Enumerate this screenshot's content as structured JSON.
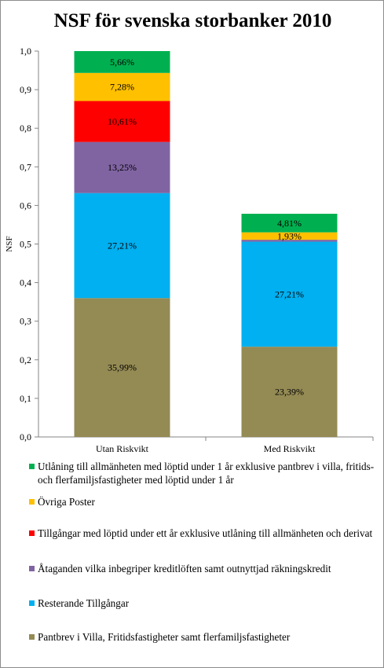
{
  "chart_data": {
    "type": "bar",
    "stacked": true,
    "title": "NSF för svenska storbanker 2010",
    "xlabel": "",
    "ylabel": "NSF",
    "ylim": [
      0,
      1
    ],
    "yticks": [
      "0,0",
      "0,1",
      "0,2",
      "0,3",
      "0,4",
      "0,5",
      "0,6",
      "0,7",
      "0,8",
      "0,9",
      "1,0"
    ],
    "categories": [
      "Utan Riskvikt",
      "Med Riskvikt"
    ],
    "grid": false,
    "legend_position": "bottom",
    "series": [
      {
        "name": "Pantbrev i Villa, Fritidsfastigheter samt flerfamiljsfastigheter",
        "color": "#948a54",
        "values": [
          0.3599,
          0.2339
        ],
        "labels": [
          "35,99%",
          "23,39%"
        ]
      },
      {
        "name": "Resterande Tillgångar",
        "color": "#00b0f0",
        "values": [
          0.2721,
          0.2721
        ],
        "labels": [
          "27,21%",
          "27,21%"
        ]
      },
      {
        "name": "Åtaganden vilka inbegriper kreditlöften samt outnyttjad räkningskredit",
        "color": "#8064a2",
        "values": [
          0.1325,
          0.005
        ],
        "labels": [
          "13,25%",
          ""
        ]
      },
      {
        "name": "Tillgångar med löptid under ett år exklusive utlåning till allmänheten och derivat",
        "color": "#ff0000",
        "values": [
          0.1061,
          0.0
        ],
        "labels": [
          "10,61%",
          ""
        ]
      },
      {
        "name": "Övriga Poster",
        "color": "#ffc000",
        "values": [
          0.0728,
          0.0193
        ],
        "labels": [
          "7,28%",
          "1,93%"
        ]
      },
      {
        "name": "Utlåning till allmänheten med löptid under 1 år exklusive pantbrev i villa, fritids- och flerfamiljsfastigheter med löptid under 1 år",
        "color": "#00b050",
        "values": [
          0.0566,
          0.0481
        ],
        "labels": [
          "5,66%",
          "4,81%"
        ]
      }
    ]
  }
}
